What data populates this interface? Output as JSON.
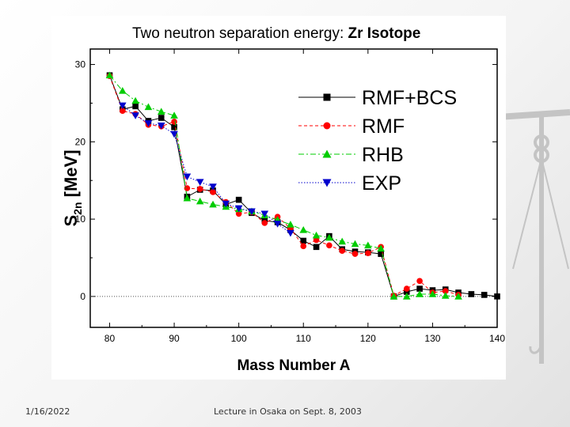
{
  "slide": {
    "date": "1/16/2022",
    "footer": "Lecture in Osaka on Sept. 8, 2003"
  },
  "chart_data": {
    "type": "line",
    "title": "Two neutron separation energy: ",
    "title_bold": "Zr Isotope",
    "xlabel_main": "Mass Number ",
    "xlabel_bold": "A",
    "ylabel_main": "S",
    "ylabel_sub": "2n",
    "ylabel_unit": " [MeV]",
    "xlim": [
      77,
      140
    ],
    "ylim": [
      -4,
      32
    ],
    "xticks": [
      80,
      90,
      100,
      110,
      120,
      130,
      140
    ],
    "yticks": [
      0,
      10,
      20,
      30
    ],
    "zero_line": true,
    "legend_position": "top-right",
    "series": [
      {
        "name": "RMF+BCS",
        "color": "#000000",
        "marker": "square",
        "dash": "none",
        "x": [
          80,
          82,
          84,
          86,
          88,
          90,
          92,
          94,
          96,
          98,
          100,
          102,
          104,
          106,
          108,
          110,
          112,
          114,
          116,
          118,
          120,
          122,
          124,
          126,
          128,
          130,
          132,
          134,
          136,
          138,
          140
        ],
        "y": [
          28.6,
          24.2,
          24.6,
          22.7,
          23.1,
          21.9,
          12.9,
          13.8,
          13.7,
          11.9,
          12.5,
          10.8,
          9.8,
          9.6,
          8.6,
          7.2,
          6.4,
          7.8,
          6.1,
          5.8,
          5.7,
          5.5,
          0.0,
          0.6,
          1.0,
          0.8,
          0.9,
          0.5,
          0.3,
          0.2,
          0.0
        ]
      },
      {
        "name": "RMF",
        "color": "#ff0000",
        "marker": "circle",
        "dash": "4,3",
        "x": [
          80,
          82,
          84,
          86,
          88,
          90,
          92,
          94,
          96,
          98,
          100,
          102,
          104,
          106,
          108,
          110,
          112,
          114,
          116,
          118,
          120,
          122,
          124,
          126,
          128,
          130,
          132,
          134
        ],
        "y": [
          28.5,
          24.0,
          23.6,
          22.2,
          22.0,
          22.6,
          14.0,
          13.9,
          13.5,
          12.2,
          10.7,
          10.9,
          9.5,
          10.3,
          8.8,
          6.5,
          7.3,
          6.6,
          5.9,
          5.5,
          5.6,
          6.4,
          0.1,
          1.0,
          2.0,
          0.5,
          0.7,
          0.2
        ]
      },
      {
        "name": "RHB",
        "color": "#00cc00",
        "marker": "triangle-up",
        "dash": "7,3,2,3",
        "x": [
          80,
          82,
          84,
          86,
          88,
          90,
          92,
          94,
          96,
          98,
          100,
          102,
          104,
          106,
          108,
          110,
          112,
          114,
          116,
          118,
          120,
          122,
          124,
          126,
          128,
          130,
          132,
          134
        ],
        "y": [
          28.6,
          26.6,
          25.3,
          24.5,
          23.9,
          23.4,
          12.7,
          12.3,
          11.9,
          11.6,
          11.3,
          11.0,
          10.5,
          9.9,
          9.3,
          8.6,
          7.9,
          7.6,
          7.1,
          6.8,
          6.6,
          6.2,
          0.0,
          0.0,
          0.3,
          0.3,
          0.1,
          0.0
        ]
      },
      {
        "name": "EXP",
        "color": "#0000cc",
        "marker": "triangle-down",
        "dash": "1.5,2",
        "x": [
          82,
          84,
          86,
          88,
          90,
          92,
          94,
          96,
          98,
          100,
          102,
          104,
          106,
          108
        ],
        "y": [
          24.7,
          23.4,
          22.4,
          22.1,
          21.0,
          15.5,
          14.8,
          14.2,
          12.0,
          11.4,
          11.0,
          10.7,
          9.4,
          8.2
        ]
      }
    ]
  }
}
